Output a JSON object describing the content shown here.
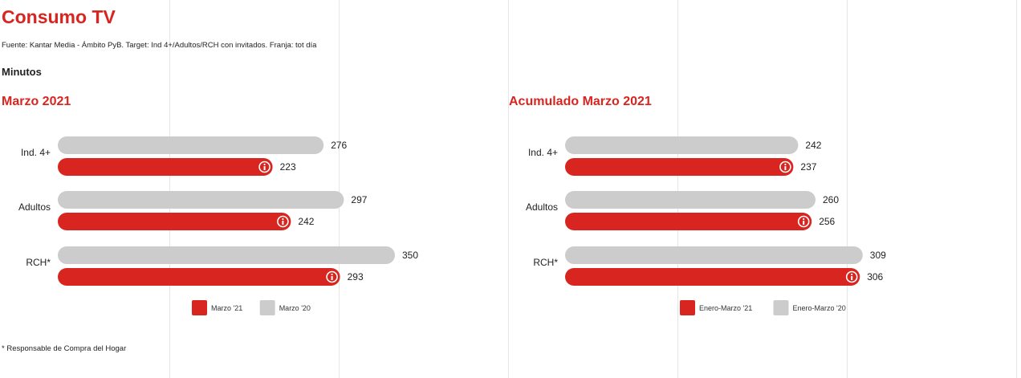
{
  "header": {
    "title": "Consumo TV",
    "source": "Fuente: Kantar Media - Ámbito PyB. Target: Ind 4+/Adultos/RCH con invitados. Franja: tot día",
    "unit": "Minutos"
  },
  "footnote": "* Responsable de Compra del Hogar",
  "colors": {
    "accent": "#d9251f",
    "current": "#d9251f",
    "previous": "#cccccc",
    "grid": "#e6e6e6"
  },
  "chart_data": [
    {
      "type": "bar",
      "orientation": "horizontal",
      "title": "Marzo 2021",
      "categories": [
        "Ind. 4+",
        "Adultos",
        "RCH*"
      ],
      "series": [
        {
          "name": "Marzo '20",
          "values": [
            276,
            297,
            350
          ],
          "color": "#cccccc"
        },
        {
          "name": "Marzo '21",
          "values": [
            223,
            242,
            293
          ],
          "color": "#d9251f",
          "icon": "info-icon"
        }
      ],
      "legend": [
        "Marzo '21",
        "Marzo '20"
      ],
      "legend_position": "bottom",
      "xlim": [
        0,
        400
      ]
    },
    {
      "type": "bar",
      "orientation": "horizontal",
      "title": "Acumulado Marzo 2021",
      "categories": [
        "Ind. 4+",
        "Adultos",
        "RCH*"
      ],
      "series": [
        {
          "name": "Enero-Marzo '20",
          "values": [
            242,
            260,
            309
          ],
          "color": "#cccccc"
        },
        {
          "name": "Enero-Marzo '21",
          "values": [
            237,
            256,
            306
          ],
          "color": "#d9251f",
          "icon": "info-icon"
        }
      ],
      "legend": [
        "Enero-Marzo '21",
        "Enero-Marzo '20"
      ],
      "legend_position": "bottom",
      "xlim": [
        0,
        400
      ]
    }
  ]
}
